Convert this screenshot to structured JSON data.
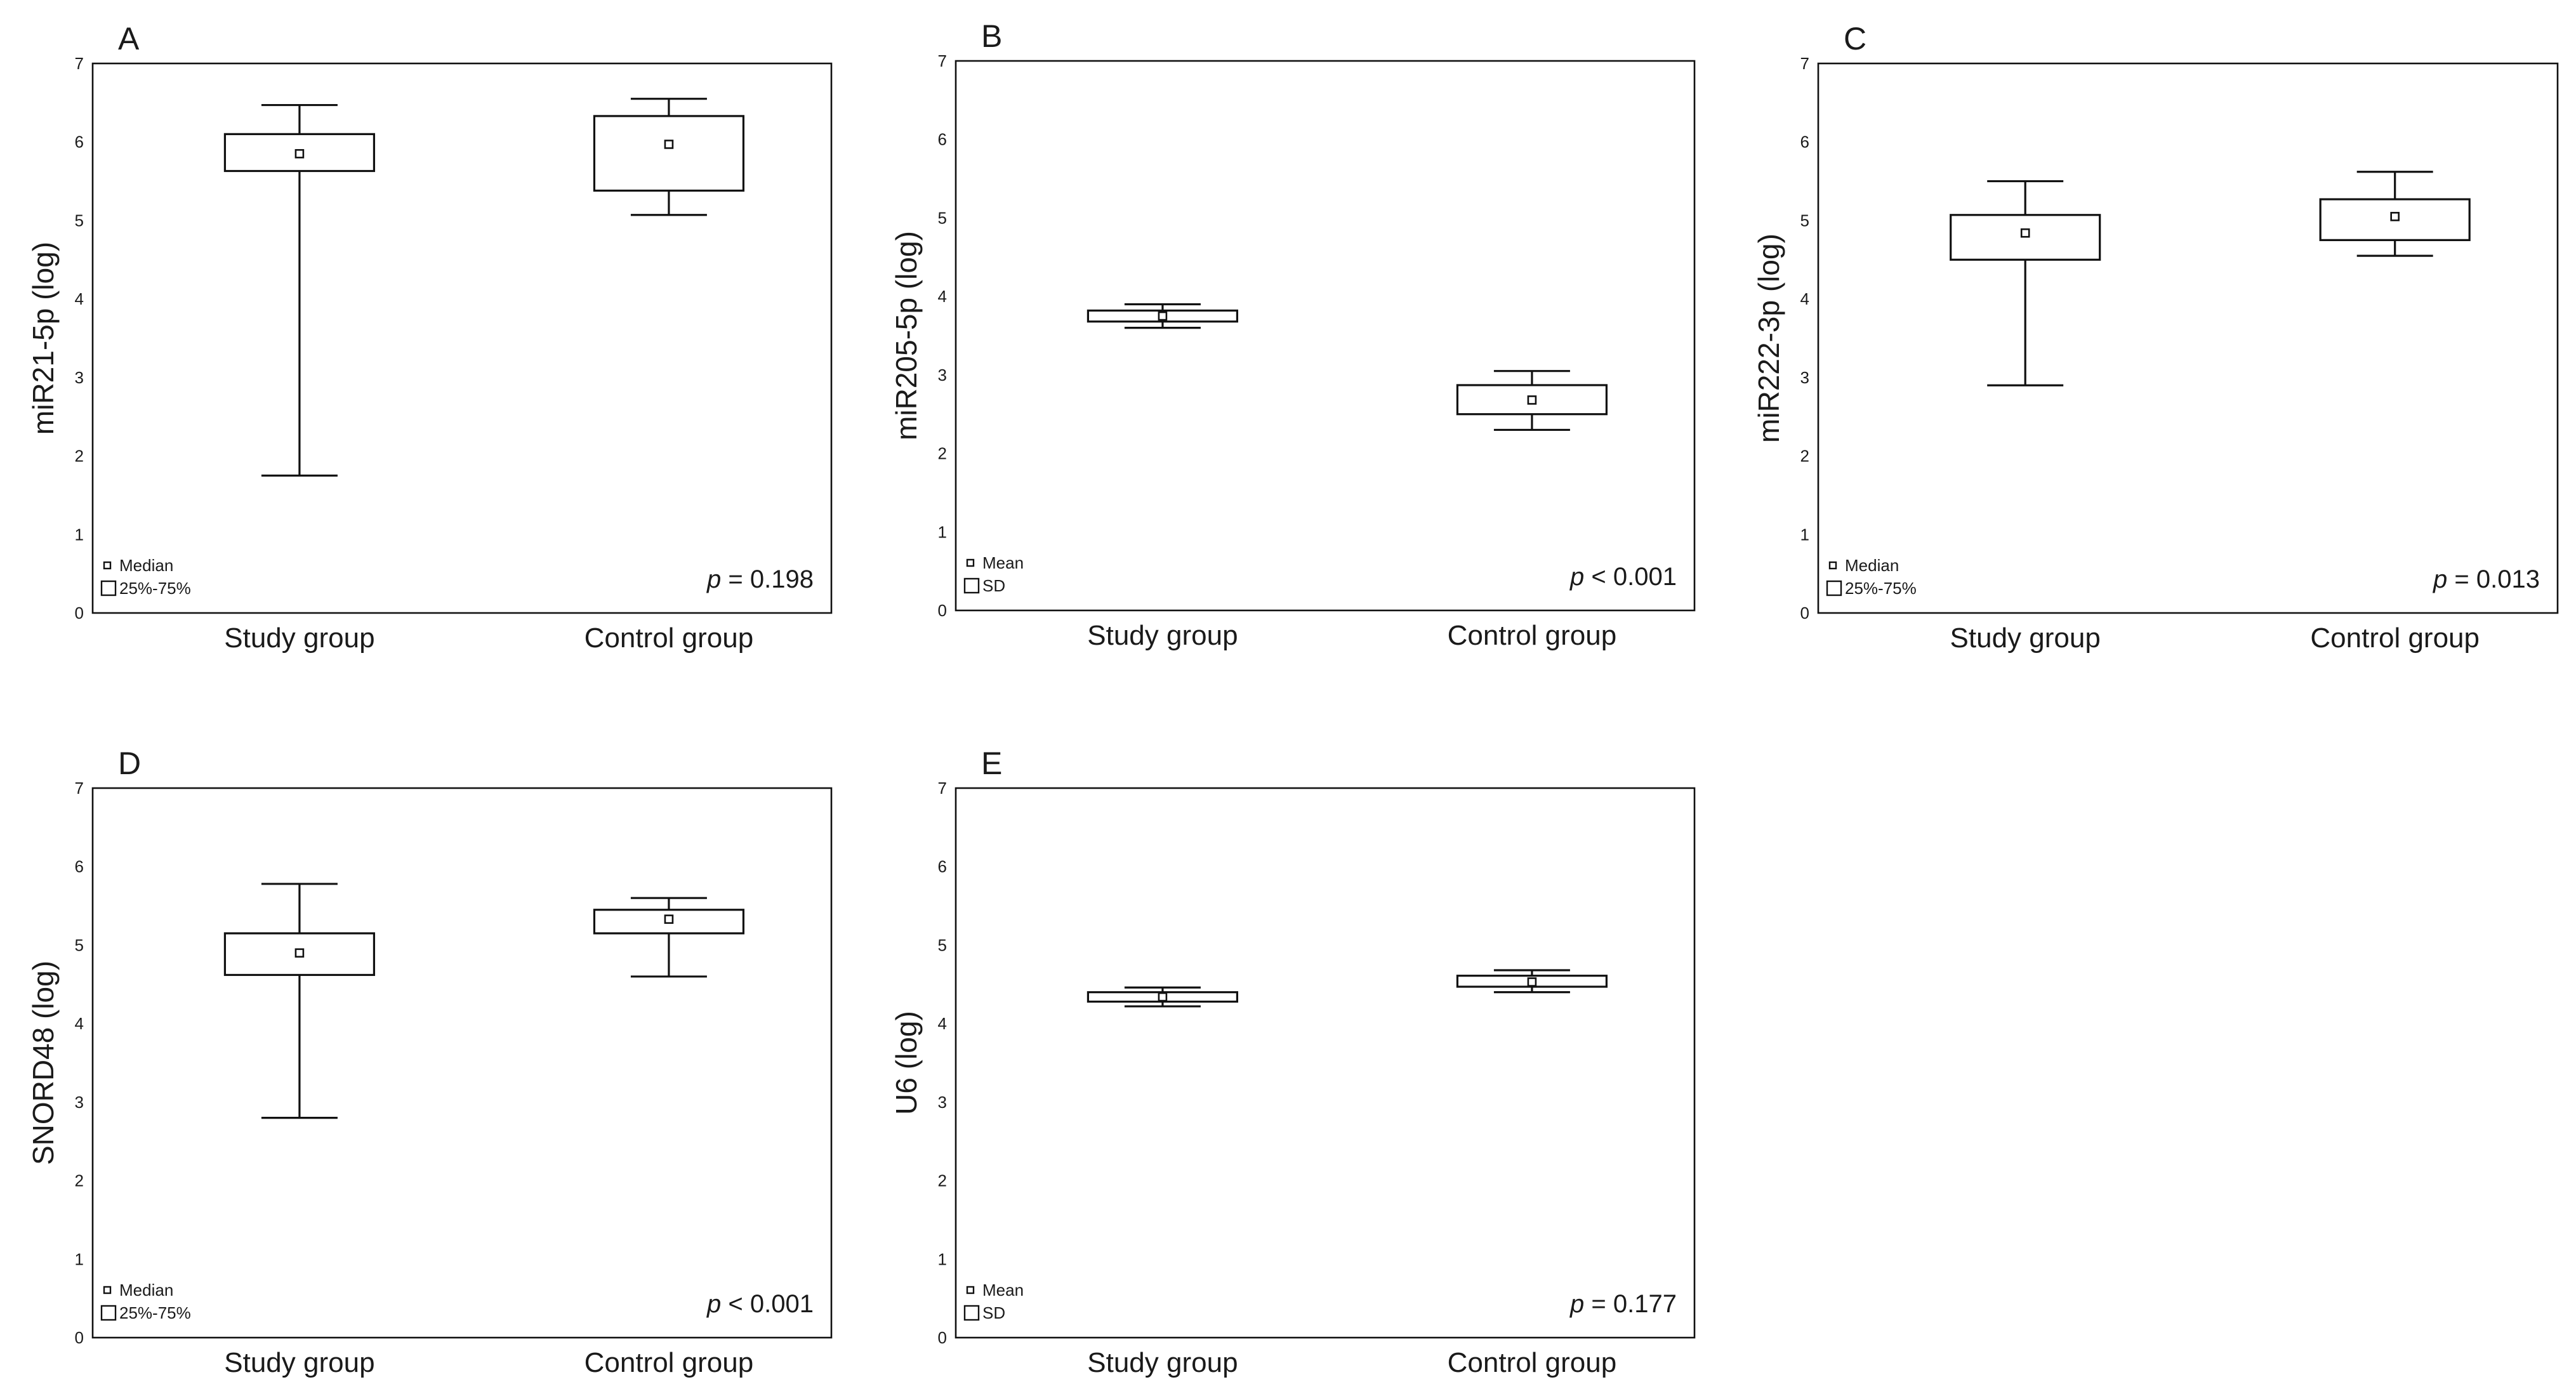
{
  "chart_data": [
    {
      "type": "boxplot",
      "panel_label": "A",
      "ylabel": "miR21-5p (log)",
      "ylim": [
        0,
        7
      ],
      "yticks": [
        "0",
        "1",
        "2",
        "3",
        "4",
        "5",
        "6",
        "7"
      ],
      "categories": [
        "Study group",
        "Control group"
      ],
      "boxes": [
        {
          "center": 5.85,
          "q1": 5.63,
          "q3": 6.1,
          "low": 1.75,
          "high": 6.47
        },
        {
          "center": 5.97,
          "q1": 5.38,
          "q3": 6.33,
          "low": 5.07,
          "high": 6.55
        }
      ],
      "legend": [
        {
          "symbol": "point",
          "label": "Median"
        },
        {
          "symbol": "box",
          "label": "25%-75%"
        }
      ],
      "p_label": "p",
      "p_value": "= 0.198"
    },
    {
      "type": "boxplot",
      "panel_label": "B",
      "ylabel": "miR205-5p (log)",
      "ylim": [
        0,
        7
      ],
      "yticks": [
        "0",
        "1",
        "2",
        "3",
        "4",
        "5",
        "6",
        "7"
      ],
      "categories": [
        "Study group",
        "Control group"
      ],
      "boxes": [
        {
          "center": 3.75,
          "q1": 3.68,
          "q3": 3.82,
          "low": 3.6,
          "high": 3.9
        },
        {
          "center": 2.68,
          "q1": 2.5,
          "q3": 2.87,
          "low": 2.3,
          "high": 3.05
        }
      ],
      "legend": [
        {
          "symbol": "point",
          "label": "Mean"
        },
        {
          "symbol": "box",
          "label": "SD"
        }
      ],
      "p_label": "p",
      "p_value": "< 0.001"
    },
    {
      "type": "boxplot",
      "panel_label": "C",
      "ylabel": "miR222-3p (log)",
      "ylim": [
        0,
        7
      ],
      "yticks": [
        "0",
        "1",
        "2",
        "3",
        "4",
        "5",
        "6",
        "7"
      ],
      "categories": [
        "Study group",
        "Control group"
      ],
      "boxes": [
        {
          "center": 4.84,
          "q1": 4.5,
          "q3": 5.07,
          "low": 2.9,
          "high": 5.5
        },
        {
          "center": 5.05,
          "q1": 4.75,
          "q3": 5.27,
          "low": 4.55,
          "high": 5.62
        }
      ],
      "legend": [
        {
          "symbol": "point",
          "label": "Median"
        },
        {
          "symbol": "box",
          "label": "25%-75%"
        }
      ],
      "p_label": "p",
      "p_value": "= 0.013"
    },
    {
      "type": "boxplot",
      "panel_label": "D",
      "ylabel": "SNORD48 (log)",
      "ylim": [
        0,
        7
      ],
      "yticks": [
        "0",
        "1",
        "2",
        "3",
        "4",
        "5",
        "6",
        "7"
      ],
      "categories": [
        "Study group",
        "Control group"
      ],
      "boxes": [
        {
          "center": 4.9,
          "q1": 4.62,
          "q3": 5.15,
          "low": 2.8,
          "high": 5.78
        },
        {
          "center": 5.33,
          "q1": 5.15,
          "q3": 5.45,
          "low": 4.6,
          "high": 5.6
        }
      ],
      "legend": [
        {
          "symbol": "point",
          "label": "Median"
        },
        {
          "symbol": "box",
          "label": "25%-75%"
        }
      ],
      "p_label": "p",
      "p_value": "< 0.001"
    },
    {
      "type": "boxplot",
      "panel_label": "E",
      "ylabel": "U6 (log)",
      "ylim": [
        0,
        7
      ],
      "yticks": [
        "0",
        "1",
        "2",
        "3",
        "4",
        "5",
        "6",
        "7"
      ],
      "categories": [
        "Study group",
        "Control group"
      ],
      "boxes": [
        {
          "center": 4.34,
          "q1": 4.28,
          "q3": 4.4,
          "low": 4.22,
          "high": 4.46
        },
        {
          "center": 4.53,
          "q1": 4.47,
          "q3": 4.61,
          "low": 4.4,
          "high": 4.68
        }
      ],
      "legend": [
        {
          "symbol": "point",
          "label": "Mean"
        },
        {
          "symbol": "box",
          "label": "SD"
        }
      ],
      "p_label": "p",
      "p_value": "= 0.177"
    }
  ]
}
